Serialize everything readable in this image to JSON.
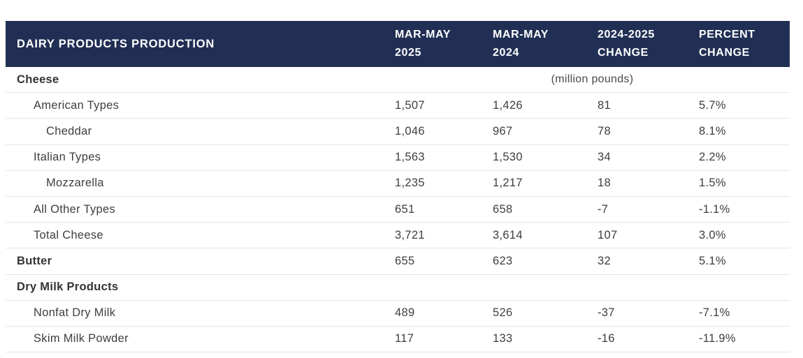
{
  "chart_data": {
    "type": "table",
    "title": "DAIRY PRODUCTS PRODUCTION",
    "unit_note": "(million pounds)",
    "column_headers": [
      {
        "line1": "MAR-MAY",
        "line2": "2025"
      },
      {
        "line1": "MAR-MAY",
        "line2": "2024"
      },
      {
        "line1": "2024-2025",
        "line2": "CHANGE"
      },
      {
        "line1": "PERCENT",
        "line2": "CHANGE"
      }
    ],
    "rows": [
      {
        "label": "Cheese",
        "style": "section",
        "indent": 0,
        "values": [
          "",
          "",
          "",
          ""
        ]
      },
      {
        "label": "American Types",
        "style": "data",
        "indent": 1,
        "values": [
          "1,507",
          "1,426",
          "81",
          "5.7%"
        ]
      },
      {
        "label": "Cheddar",
        "style": "data",
        "indent": 2,
        "values": [
          "1,046",
          "967",
          "78",
          "8.1%"
        ]
      },
      {
        "label": "Italian Types",
        "style": "data",
        "indent": 1,
        "values": [
          "1,563",
          "1,530",
          "34",
          "2.2%"
        ]
      },
      {
        "label": "Mozzarella",
        "style": "data",
        "indent": 2,
        "values": [
          "1,235",
          "1,217",
          "18",
          "1.5%"
        ]
      },
      {
        "label": "All Other Types",
        "style": "data",
        "indent": 1,
        "values": [
          "651",
          "658",
          "-7",
          "-1.1%"
        ]
      },
      {
        "label": "Total Cheese",
        "style": "data",
        "indent": 1,
        "values": [
          "3,721",
          "3,614",
          "107",
          "3.0%"
        ]
      },
      {
        "label": "Butter",
        "style": "section",
        "indent": 0,
        "values": [
          "655",
          "623",
          "32",
          "5.1%"
        ]
      },
      {
        "label": "Dry Milk Products",
        "style": "section",
        "indent": 0,
        "values": [
          "",
          "",
          "",
          ""
        ]
      },
      {
        "label": "Nonfat Dry Milk",
        "style": "data",
        "indent": 1,
        "values": [
          "489",
          "526",
          "-37",
          "-7.1%"
        ]
      },
      {
        "label": "Skim Milk Powder",
        "style": "data",
        "indent": 1,
        "values": [
          "117",
          "133",
          "-16",
          "-11.9%"
        ]
      }
    ],
    "colors": {
      "header_bg": "#212F55",
      "header_text": "#FFFFFF",
      "body_text": "#3E3E3E",
      "divider": "#E2E5E8"
    }
  }
}
